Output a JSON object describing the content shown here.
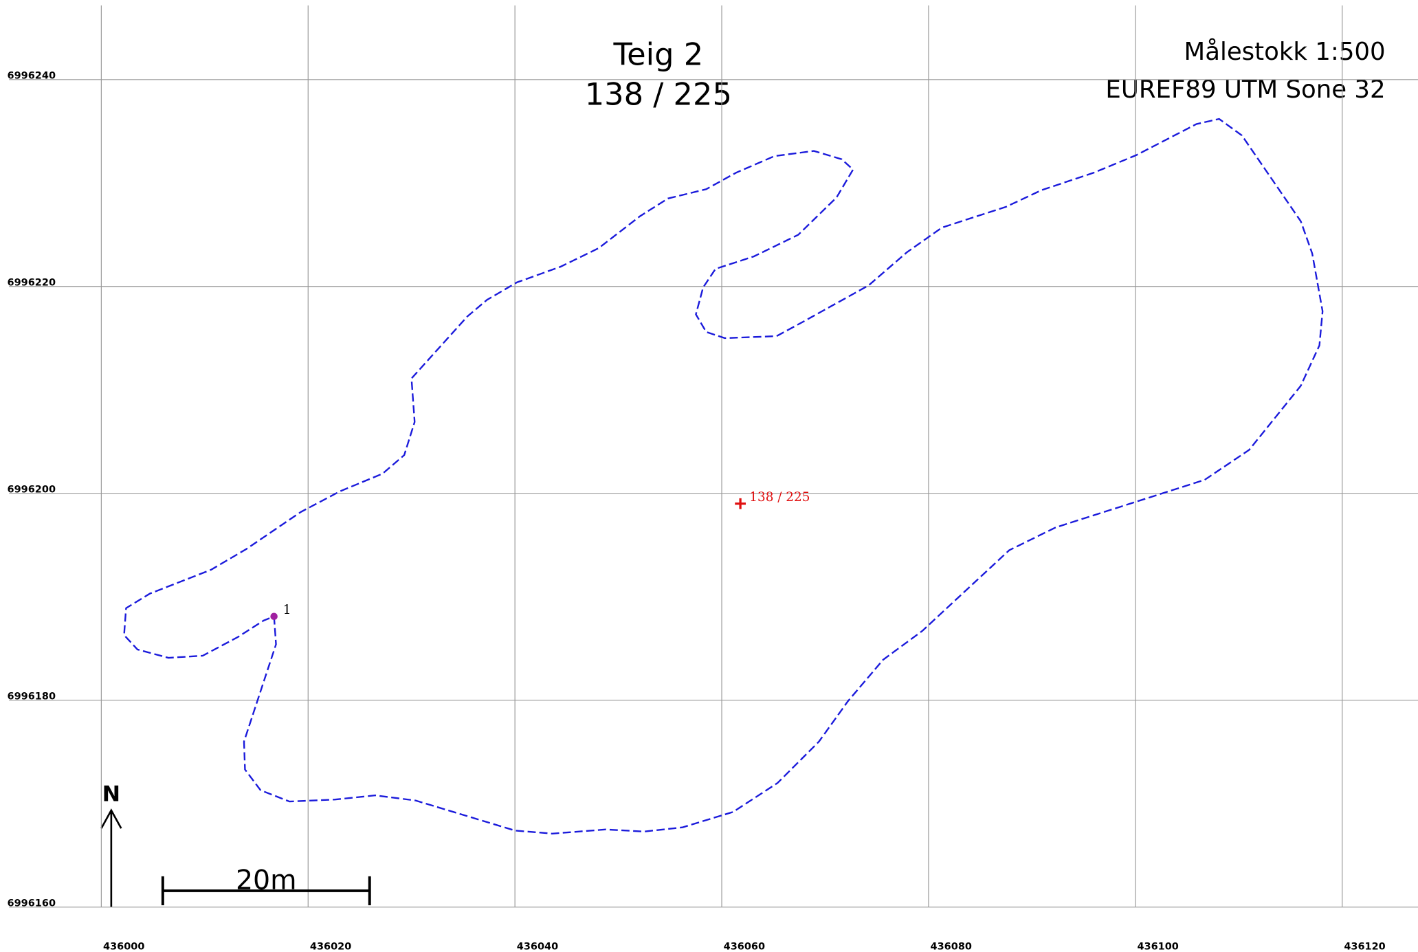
{
  "map": {
    "title": "Teig 2",
    "subtitle": "138 / 225",
    "scale": "Målestokk 1:500",
    "crs": "EUREF89 UTM Sone 32",
    "north": "N",
    "scale_bar": {
      "label": "20m",
      "length": 20
    },
    "xlim": [
      435991.08,
      436127.33
    ],
    "ylim": [
      6996160,
      6996247.17
    ],
    "xticks": [
      436000,
      436020,
      436040,
      436060,
      436080,
      436100,
      436120
    ],
    "yticks": [
      6996160,
      6996180,
      6996200,
      6996220,
      6996240
    ],
    "parcel": {
      "color": "#1a1adb",
      "x": [
        436016.7,
        436016.9,
        436013.8,
        436013.9,
        436015.4,
        436018.2,
        436022.6,
        436026.5,
        436030.4,
        436040.0,
        436043.6,
        436048.8,
        436052.5,
        436056.2,
        436061.1,
        436065.4,
        436069.4,
        436072.2,
        436075.6,
        436079.4,
        436087.8,
        436092.3,
        436106.7,
        436111.0,
        436116.0,
        436117.8,
        436118.1,
        436117.1,
        436116.0,
        436110.3,
        436108.1,
        436105.9,
        436100.1,
        436096.0,
        436090.9,
        436087.5,
        436081.3,
        436077.9,
        436074.2,
        436067.9,
        436065.3,
        436060.3,
        436058.5,
        436057.5,
        436058.2,
        436059.4,
        436063.1,
        436067.4,
        436071.1,
        436072.7,
        436071.6,
        436068.9,
        436065.1,
        436061.4,
        436058.5,
        436054.8,
        436052.1,
        436048.1,
        436044.4,
        436040.2,
        436037.3,
        436035.4,
        436030.0,
        436030.3,
        436029.3,
        436027.2,
        436023.1,
        436019.3,
        436014.0,
        436010.6,
        436004.7,
        436002.4,
        436002.2,
        436003.5,
        436006.5,
        436009.8,
        436013.2,
        436015.7
      ],
      "y": [
        6996188.1,
        6996185.4,
        6996176.0,
        6996173.3,
        6996171.3,
        6996170.2,
        6996170.4,
        6996170.8,
        6996170.3,
        6996167.4,
        6996167.1,
        6996167.5,
        6996167.3,
        6996167.7,
        6996169.2,
        6996172.0,
        6996176.0,
        6996179.9,
        6996183.9,
        6996186.7,
        6996194.5,
        6996196.7,
        6996201.3,
        6996204.2,
        6996210.4,
        6996214.3,
        6996217.6,
        6996223.2,
        6996226.3,
        6996234.6,
        6996236.2,
        6996235.7,
        6996232.7,
        6996231.0,
        6996229.3,
        6996227.7,
        6996225.7,
        6996223.3,
        6996220.1,
        6996216.6,
        6996215.2,
        6996215.0,
        6996215.6,
        6996217.3,
        6996219.9,
        6996221.7,
        6996222.9,
        6996225.0,
        6996228.6,
        6996231.3,
        6996232.3,
        6996233.1,
        6996232.6,
        6996231.0,
        6996229.4,
        6996228.5,
        6996226.8,
        6996223.7,
        6996221.9,
        6996220.4,
        6996218.7,
        6996217.1,
        6996211.1,
        6996206.9,
        6996203.7,
        6996201.9,
        6996200.2,
        6996198.2,
        6996194.6,
        6996192.6,
        6996190.3,
        6996188.9,
        6996186.3,
        6996184.9,
        6996184.1,
        6996184.3,
        6996186.1,
        6996187.7
      ]
    },
    "point": {
      "label": "1",
      "x": 436016.7,
      "y": 6996188.1,
      "color": "#a020a0"
    },
    "centroid": {
      "label": "138 / 225",
      "x": 436061.8,
      "y": 6996199.0,
      "color": "#e01010"
    }
  }
}
